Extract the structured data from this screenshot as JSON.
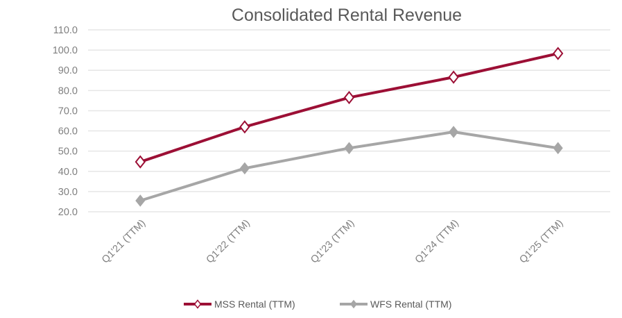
{
  "chart_data": {
    "type": "line",
    "title": "Consolidated Rental Revenue",
    "xlabel": "",
    "ylabel": "",
    "categories": [
      "Q1'21 (TTM)",
      "Q1'22 (TTM)",
      "Q1'23 (TTM)",
      "Q1'24 (TTM)",
      "Q1'25 (TTM)"
    ],
    "ylim": [
      20,
      110
    ],
    "yticks": [
      "20.0",
      "30.0",
      "40.0",
      "50.0",
      "60.0",
      "70.0",
      "80.0",
      "90.0",
      "100.0",
      "110.0"
    ],
    "grid": true,
    "legend_position": "bottom",
    "series": [
      {
        "name": "MSS Rental (TTM)",
        "color": "#9c0f35",
        "marker": "hollow-diamond",
        "values": [
          44.7,
          62.0,
          76.5,
          86.6,
          98.3
        ]
      },
      {
        "name": "WFS Rental (TTM)",
        "color": "#a6a6a6",
        "marker": "filled-diamond",
        "values": [
          25.5,
          41.5,
          51.5,
          59.5,
          51.5
        ]
      }
    ]
  }
}
